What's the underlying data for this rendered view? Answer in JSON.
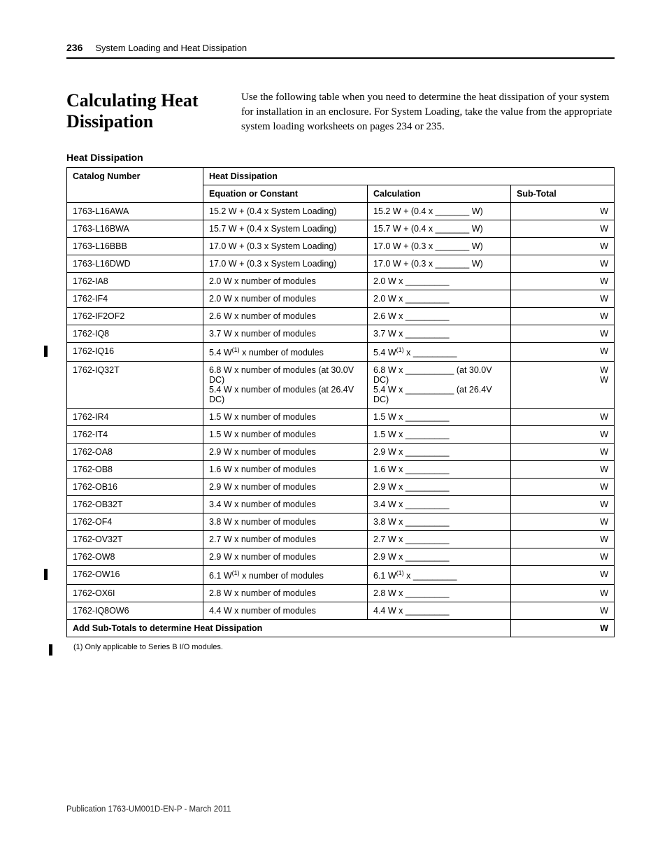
{
  "header": {
    "page_number": "236",
    "chapter": "System Loading and Heat Dissipation"
  },
  "section": {
    "title": "Calculating Heat Dissipation",
    "intro": "Use the following table when you need to determine the heat dissipation of your system for installation in an enclosure. For System Loading, take the value from the appropriate system loading worksheets on pages 234 or 235."
  },
  "table": {
    "title": "Heat Dissipation",
    "columns": {
      "col1": "Catalog Number",
      "col2": "Heat Dissipation",
      "sub1": "Equation or Constant",
      "sub2": "Calculation",
      "sub3": "Sub-Total"
    },
    "rows": [
      {
        "cat": "1763-L16AWA",
        "eq": "15.2 W + (0.4 x System Loading)",
        "calc": "15.2 W + (0.4 x _______  W)",
        "sub": "W"
      },
      {
        "cat": "1763-L16BWA",
        "eq": "15.7 W + (0.4 x System Loading)",
        "calc": "15.7 W + (0.4 x _______  W)",
        "sub": "W"
      },
      {
        "cat": "1763-L16BBB",
        "eq": "17.0 W + (0.3 x System Loading)",
        "calc": "17.0 W + (0.3 x _______  W)",
        "sub": "W"
      },
      {
        "cat": "1763-L16DWD",
        "eq": "17.0 W + (0.3 x System Loading)",
        "calc": "17.0 W + (0.3 x _______  W)",
        "sub": "W"
      },
      {
        "cat": "1762-IA8",
        "eq": "2.0 W x number of modules",
        "calc": "2.0 W x _________",
        "sub": "W"
      },
      {
        "cat": "1762-IF4",
        "eq": "2.0 W x number of modules",
        "calc": "2.0 W x _________",
        "sub": "W"
      },
      {
        "cat": "1762-IF2OF2",
        "eq": "2.6 W x number of modules",
        "calc": "2.6 W x _________",
        "sub": "W"
      },
      {
        "cat": "1762-IQ8",
        "eq": "3.7 W x number of modules",
        "calc": "3.7 W x _________",
        "sub": "W"
      },
      {
        "cat": "1762-IQ16",
        "eq_html": "5.4 W<sup>(1)</sup> x number of modules",
        "calc_html": "5.4 W<sup>(1)</sup> x _________",
        "sub": "W",
        "bar": true
      },
      {
        "cat": "1762-IQ32T",
        "eq_html": "6.8 W x number of modules (at 30.0V DC)<br>5.4 W x number of modules (at 26.4V DC)",
        "calc_html": "6.8 W x __________ (at 30.0V DC)<br>5.4 W x __________ (at 26.4V DC)",
        "sub_html": "W<br>W"
      },
      {
        "cat": "1762-IR4",
        "eq": "1.5 W x number of modules",
        "calc": "1.5 W x _________",
        "sub": "W"
      },
      {
        "cat": "1762-IT4",
        "eq": "1.5 W x number of modules",
        "calc": "1.5 W x _________",
        "sub": "W"
      },
      {
        "cat": "1762-OA8",
        "eq": "2.9 W x number of modules",
        "calc": "2.9 W x _________",
        "sub": "W"
      },
      {
        "cat": "1762-OB8",
        "eq": "1.6 W x number of modules",
        "calc": "1.6 W x _________",
        "sub": "W"
      },
      {
        "cat": "1762-OB16",
        "eq": "2.9 W x number of modules",
        "calc": "2.9 W x _________",
        "sub": "W"
      },
      {
        "cat": "1762-OB32T",
        "eq": "3.4 W x number of modules",
        "calc": "3.4 W x _________",
        "sub": "W"
      },
      {
        "cat": "1762-OF4",
        "eq": "3.8 W x number of modules",
        "calc": "3.8 W x _________",
        "sub": "W"
      },
      {
        "cat": "1762-OV32T",
        "eq": "2.7 W x number of modules",
        "calc": "2.7 W x _________",
        "sub": "W"
      },
      {
        "cat": "1762-OW8",
        "eq": "2.9 W x number of modules",
        "calc": "2.9 W x _________",
        "sub": "W"
      },
      {
        "cat": "1762-OW16",
        "eq_html": "6.1 W<sup>(1)</sup> x number of modules",
        "calc_html": "6.1 W<sup>(1)</sup> x _________",
        "sub": "W",
        "bar": true
      },
      {
        "cat": "1762-OX6I",
        "eq": "2.8 W x number of modules",
        "calc": "2.8 W x _________",
        "sub": "W"
      },
      {
        "cat": "1762-IQ8OW6",
        "eq": "4.4 W x number of modules",
        "calc": "4.4 W x _________",
        "sub": "W"
      }
    ],
    "footer": {
      "label": "Add Sub-Totals to determine Heat Dissipation",
      "value": "W"
    }
  },
  "footnote": "(1)   Only applicable to Series B I/O modules.",
  "publication": "Publication 1763-UM001D-EN-P - March 2011"
}
